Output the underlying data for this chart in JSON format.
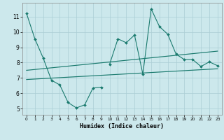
{
  "xlabel": "Humidex (Indice chaleur)",
  "background_color": "#cce8ec",
  "grid_color": "#aacdd4",
  "line_color": "#1a7a6e",
  "series1_x": [
    0,
    1,
    2,
    3,
    4,
    5,
    6,
    7,
    8,
    9
  ],
  "series1_y": [
    11.2,
    9.55,
    8.3,
    6.85,
    6.55,
    5.4,
    5.05,
    5.25,
    6.35,
    6.4
  ],
  "series2_x": [
    10,
    11,
    12,
    13,
    14,
    15,
    16,
    17,
    18,
    19,
    20,
    21,
    22,
    23
  ],
  "series2_y": [
    7.9,
    9.55,
    9.3,
    9.8,
    7.25,
    11.5,
    10.35,
    9.85,
    8.55,
    8.2,
    8.2,
    7.75,
    8.05,
    7.8
  ],
  "trend1_x": [
    0,
    23
  ],
  "trend1_y": [
    6.9,
    7.6
  ],
  "trend2_x": [
    0,
    23
  ],
  "trend2_y": [
    7.5,
    8.75
  ],
  "ylim": [
    4.6,
    11.9
  ],
  "xlim": [
    -0.5,
    23.5
  ],
  "yticks": [
    5,
    6,
    7,
    8,
    9,
    10,
    11
  ],
  "xtick_labels": [
    "0",
    "1",
    "2",
    "3",
    "4",
    "5",
    "6",
    "7",
    "8",
    "9",
    "10",
    "11",
    "12",
    "13",
    "14",
    "15",
    "16",
    "17",
    "18",
    "19",
    "20",
    "21",
    "22",
    "23"
  ]
}
